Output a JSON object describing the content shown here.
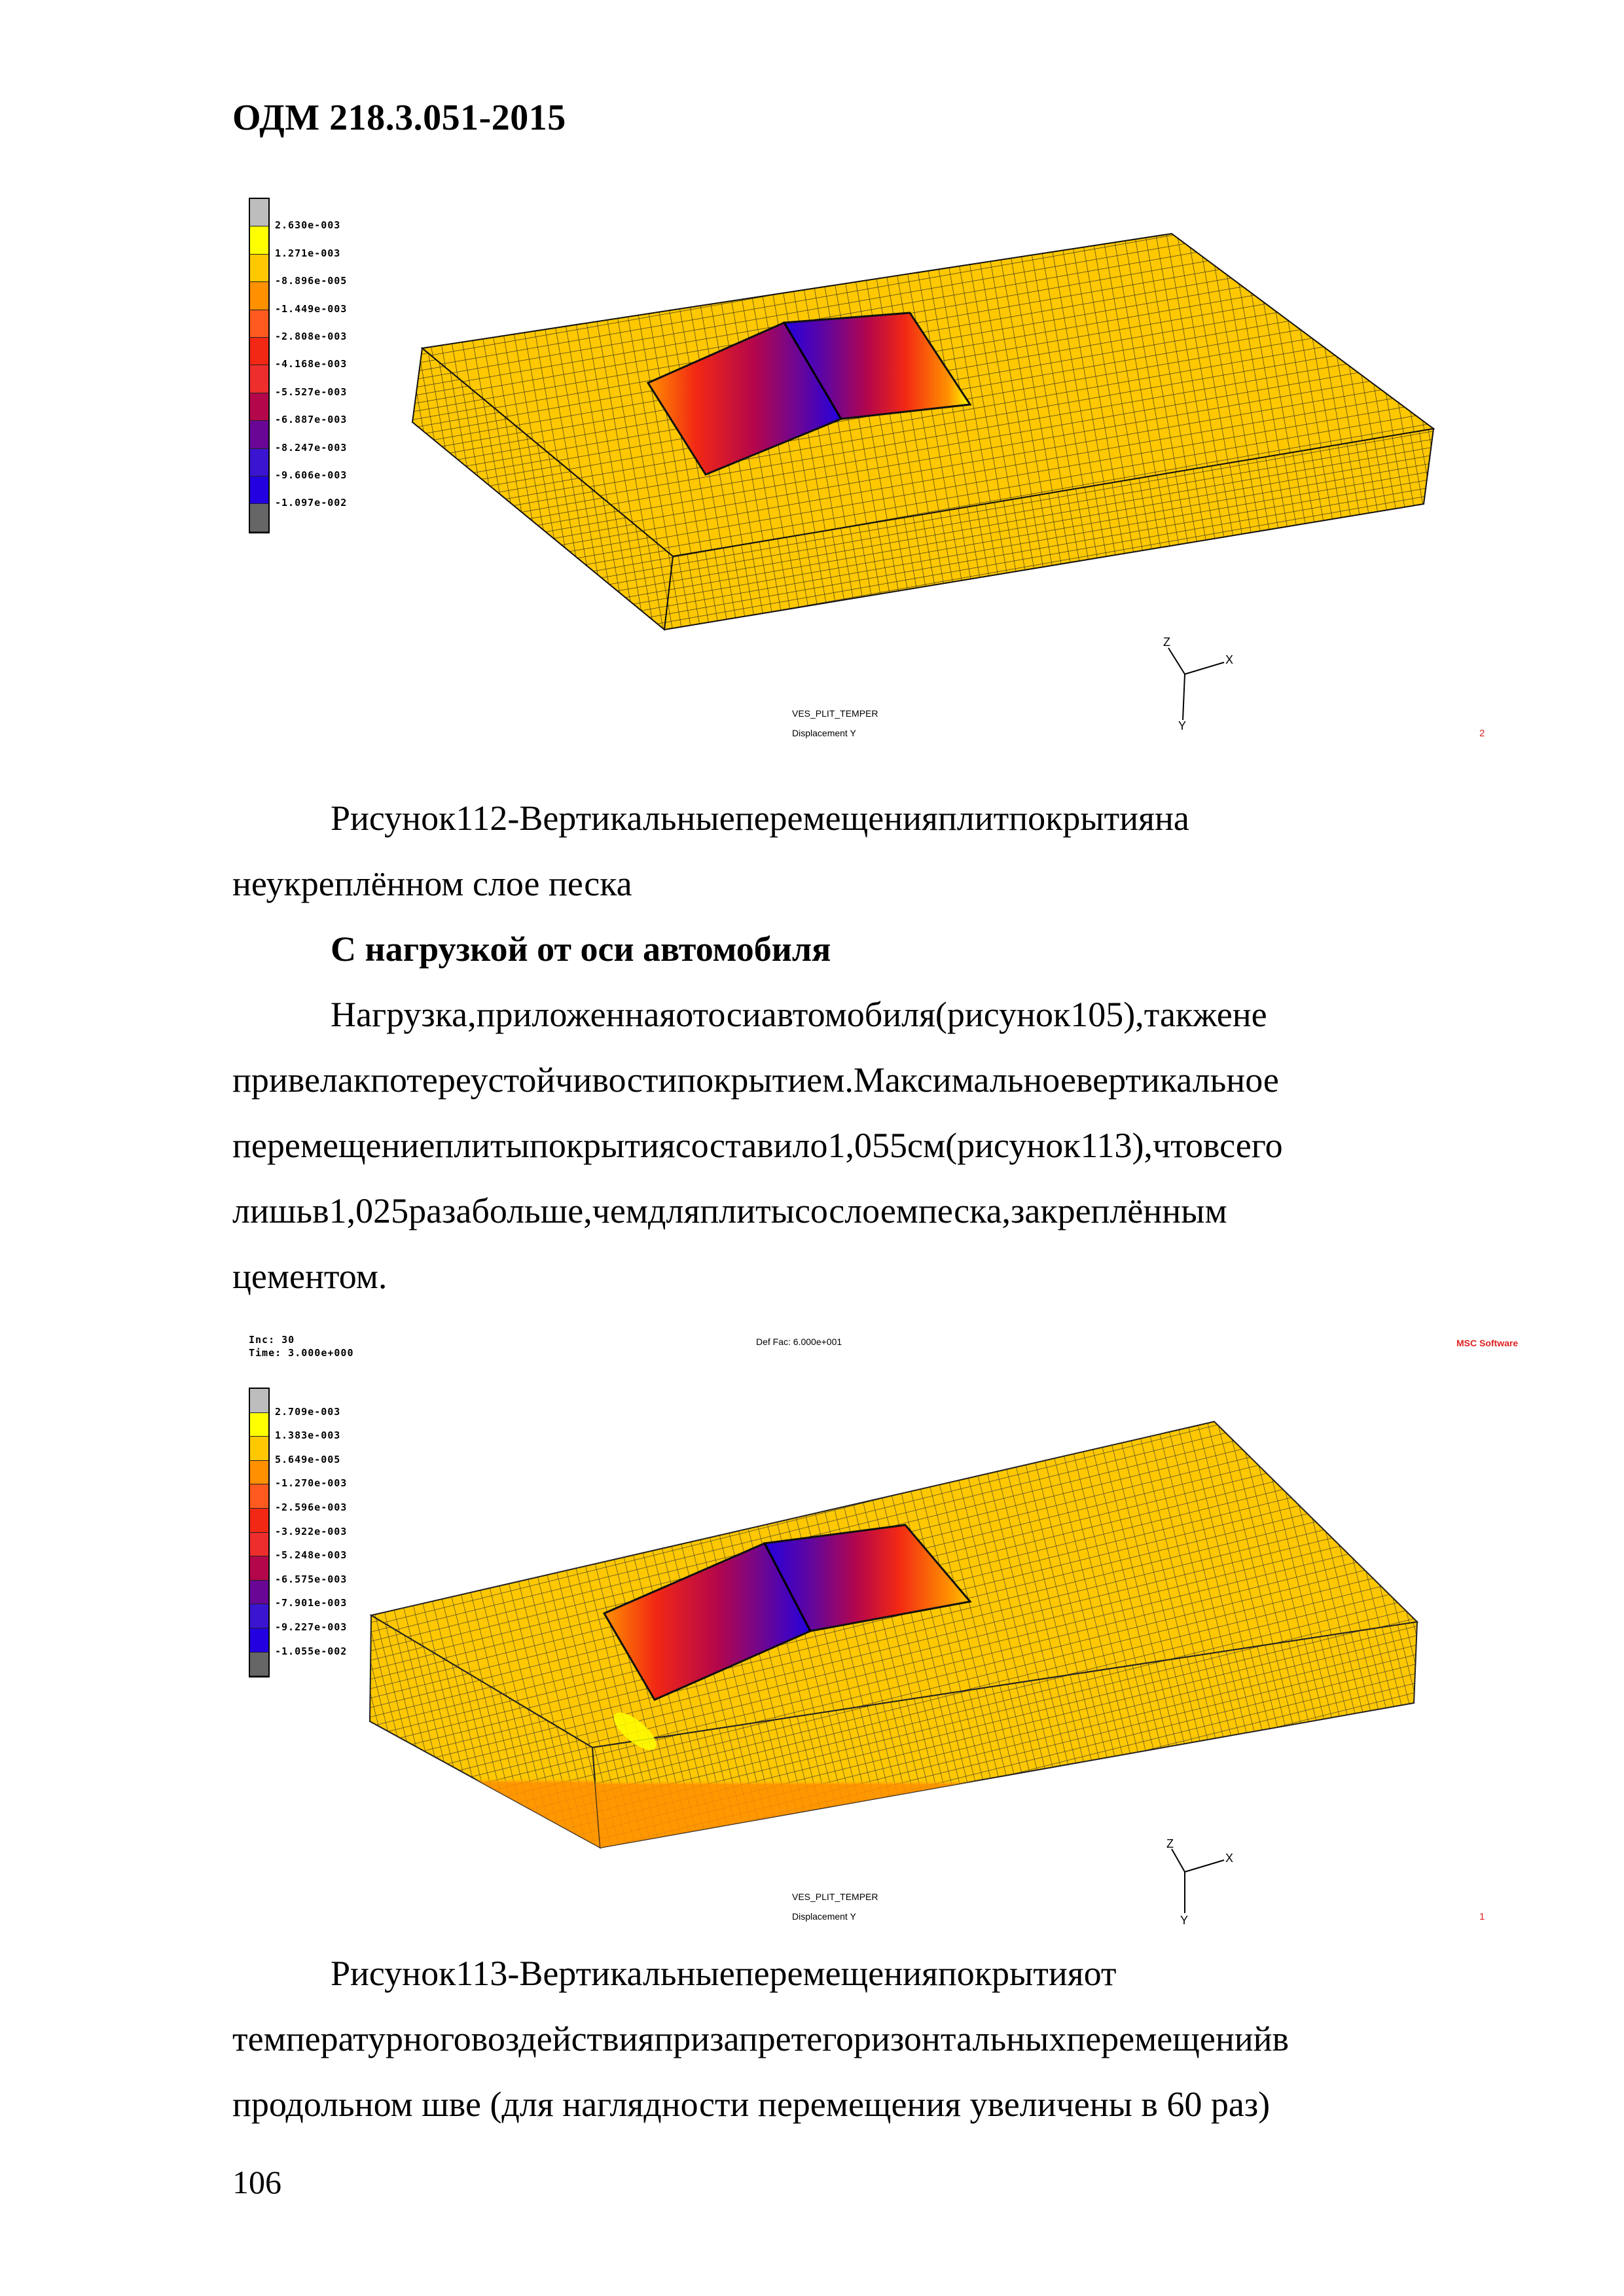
{
  "header": {
    "doc_code": "ОДМ 218.3.051-2015"
  },
  "figures": [
    {
      "id": "fig112",
      "legend": {
        "colors": [
          "#bdbdbd",
          "#ffff00",
          "#ffc800",
          "#ff9000",
          "#ff5a1e",
          "#f22814",
          "#ee2d2d",
          "#b4064b",
          "#6a0696",
          "#3a14d0",
          "#2200e0",
          "#666666"
        ],
        "labels": [
          "2.630e-003",
          "1.271e-003",
          "-8.896e-005",
          "-1.449e-003",
          "-2.808e-003",
          "-4.168e-003",
          "-5.527e-003",
          "-6.887e-003",
          "-8.247e-003",
          "-9.606e-003",
          "-1.097e-002"
        ]
      },
      "job_name": "VES_PLIT_TEMPER",
      "result_type": "Displacement Y",
      "frame_number": "2",
      "axes": {
        "x": "X",
        "y": "Y",
        "z": "Z"
      },
      "caption_lines": [
        "Рисунок 112 - Вертикальные перемещения плит покрытия на",
        "неукреплённом слое песка"
      ]
    },
    {
      "id": "fig113",
      "inc_label": "Inc:  30",
      "time_label": "Time:  3.000e+000",
      "def_fac_label": "Def Fac:  6.000e+001",
      "brand": "MSC Software",
      "legend": {
        "colors": [
          "#bdbdbd",
          "#ffff00",
          "#ffc800",
          "#ff9000",
          "#ff5a1e",
          "#f22814",
          "#ee2d2d",
          "#b4064b",
          "#6a0696",
          "#3a14d0",
          "#2200e0",
          "#666666"
        ],
        "labels": [
          "2.709e-003",
          "1.383e-003",
          "5.649e-005",
          "-1.270e-003",
          "-2.596e-003",
          "-3.922e-003",
          "-5.248e-003",
          "-6.575e-003",
          "-7.901e-003",
          "-9.227e-003",
          "-1.055e-002"
        ]
      },
      "job_name": "VES_PLIT_TEMPER",
      "result_type": "Displacement Y",
      "frame_number": "1",
      "axes": {
        "x": "X",
        "y": "Y",
        "z": "Z"
      },
      "caption_lines": [
        "Рисунок 113 - Вертикальные перемещения покрытия от",
        "температурного воздействия при запрете горизонтальных перемещений в",
        "продольном шве (для наглядности перемещения увеличены в 60 раз)"
      ]
    }
  ],
  "section": {
    "heading": "С нагрузкой от оси автомобиля",
    "paragraph_lines": [
      "Нагрузка, приложенная от оси автомобиля (рисунок 105), также не",
      "привела к потере устойчивости покрытием. Максимальное вертикальное",
      "перемещение плиты покрытия составило 1,055 см (рисунок 113), что всего",
      "лишь в 1,025 раза больше, чем для плиты со слоем песка, закреплённым",
      "цементом."
    ]
  },
  "page_number": "106"
}
